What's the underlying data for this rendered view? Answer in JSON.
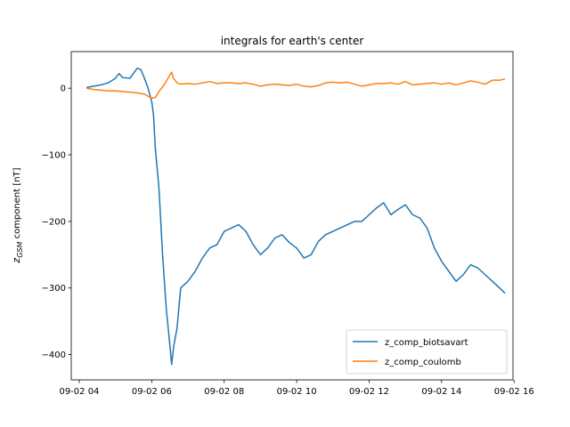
{
  "chart_data": {
    "type": "line",
    "title": "integrals for earth's center",
    "ylabel_main": "z",
    "ylabel_sub": "GSM",
    "ylabel_rest": " component [nT]",
    "xlabel": "",
    "x_ticks": [
      "09-02 04",
      "09-02 06",
      "09-02 08",
      "09-02 10",
      "09-02 12",
      "09-02 14",
      "09-02 16"
    ],
    "x_tick_hours": [
      4,
      6,
      8,
      10,
      12,
      14,
      16
    ],
    "y_ticks": [
      0,
      -100,
      -200,
      -300,
      -400
    ],
    "y_tick_labels": [
      "0",
      "−100",
      "−200",
      "−300",
      "−400"
    ],
    "xlim_hours": [
      3.78,
      15.97
    ],
    "ylim": [
      -438,
      55
    ],
    "grid": false,
    "legend_position": "lower-right",
    "series": [
      {
        "name": "z_comp_biotsavart",
        "color": "#1f77b4",
        "x_hours": [
          4.2,
          4.4,
          4.6,
          4.8,
          5.0,
          5.1,
          5.2,
          5.4,
          5.6,
          5.7,
          5.8,
          5.9,
          6.0,
          6.05,
          6.1,
          6.2,
          6.3,
          6.4,
          6.5,
          6.55,
          6.6,
          6.7,
          6.8,
          7.0,
          7.2,
          7.4,
          7.6,
          7.8,
          8.0,
          8.2,
          8.4,
          8.6,
          8.8,
          9.0,
          9.2,
          9.4,
          9.6,
          9.8,
          10.0,
          10.2,
          10.4,
          10.6,
          10.8,
          11.0,
          11.2,
          11.4,
          11.6,
          11.8,
          12.0,
          12.2,
          12.4,
          12.6,
          12.8,
          13.0,
          13.2,
          13.4,
          13.6,
          13.8,
          14.0,
          14.2,
          14.4,
          14.6,
          14.8,
          15.0,
          15.2,
          15.4,
          15.6,
          15.75
        ],
        "y": [
          1,
          3,
          5,
          8,
          15,
          22,
          16,
          15,
          30,
          28,
          15,
          0,
          -20,
          -40,
          -90,
          -150,
          -250,
          -330,
          -385,
          -415,
          -390,
          -360,
          -300,
          -290,
          -275,
          -255,
          -240,
          -235,
          -215,
          -210,
          -205,
          -215,
          -235,
          -250,
          -240,
          -225,
          -220,
          -232,
          -240,
          -255,
          -250,
          -230,
          -220,
          -215,
          -210,
          -205,
          -200,
          -200,
          -190,
          -180,
          -172,
          -190,
          -182,
          -175,
          -190,
          -195,
          -210,
          -240,
          -260,
          -275,
          -290,
          -280,
          -265,
          -270,
          -280,
          -290,
          -300,
          -308
        ]
      },
      {
        "name": "z_comp_coulomb",
        "color": "#ff7f0e",
        "x_hours": [
          4.2,
          4.4,
          4.6,
          4.8,
          5.0,
          5.2,
          5.4,
          5.6,
          5.8,
          5.9,
          6.0,
          6.1,
          6.2,
          6.3,
          6.4,
          6.5,
          6.55,
          6.6,
          6.7,
          6.8,
          7.0,
          7.2,
          7.4,
          7.6,
          7.8,
          8.0,
          8.2,
          8.4,
          8.6,
          8.8,
          9.0,
          9.2,
          9.4,
          9.6,
          9.8,
          10.0,
          10.2,
          10.4,
          10.6,
          10.8,
          11.0,
          11.2,
          11.4,
          11.6,
          11.8,
          12.0,
          12.2,
          12.4,
          12.6,
          12.8,
          13.0,
          13.2,
          13.4,
          13.6,
          13.8,
          14.0,
          14.2,
          14.4,
          14.6,
          14.8,
          15.0,
          15.2,
          15.4,
          15.6,
          15.75
        ],
        "y": [
          0,
          -2,
          -3,
          -4,
          -4,
          -5,
          -6,
          -7,
          -9,
          -12,
          -15,
          -14,
          -5,
          2,
          10,
          20,
          24,
          15,
          8,
          6,
          7,
          6,
          8,
          10,
          7,
          8,
          8,
          7,
          8,
          6,
          3,
          5,
          6,
          5,
          4,
          6,
          3,
          2,
          4,
          8,
          9,
          8,
          9,
          6,
          3,
          5,
          7,
          7,
          8,
          6,
          10,
          5,
          6,
          7,
          8,
          6,
          8,
          5,
          8,
          11,
          9,
          6,
          12,
          12,
          14
        ]
      }
    ]
  }
}
